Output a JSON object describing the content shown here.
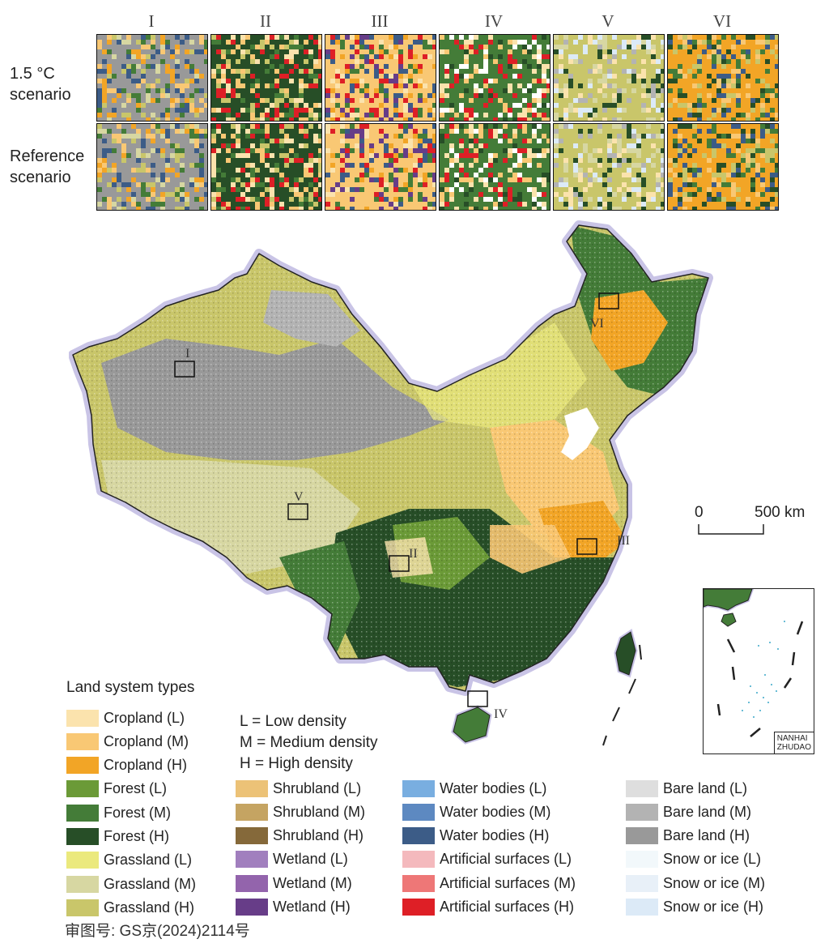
{
  "columns": [
    "I",
    "II",
    "III",
    "IV",
    "V",
    "VI"
  ],
  "rows": [
    {
      "label_line1": "1.5 °C",
      "label_line2": "scenario"
    },
    {
      "label_line1": "Reference",
      "label_line2": "scenario"
    }
  ],
  "regions": [
    "I",
    "II",
    "III",
    "IV",
    "V",
    "VI"
  ],
  "scale_bar": {
    "zero": "0",
    "end": "500 km"
  },
  "inset": {
    "label_line1": "NANHAI",
    "label_line2": "ZHUDAO"
  },
  "legend": {
    "title": "Land system types",
    "density_notes": [
      "L = Low density",
      "M = Medium density",
      "H = High density"
    ],
    "items": [
      {
        "label": "Cropland (L)",
        "color": "#fbe3ad"
      },
      {
        "label": "Cropland (M)",
        "color": "#f9c874"
      },
      {
        "label": "Cropland (H)",
        "color": "#f2a526"
      },
      {
        "label": "Forest (L)",
        "color": "#6b9a37"
      },
      {
        "label": "Forest (M)",
        "color": "#447c38"
      },
      {
        "label": "Forest (H)",
        "color": "#274e27"
      },
      {
        "label": "Grassland (L)",
        "color": "#ebe97d"
      },
      {
        "label": "Grassland (M)",
        "color": "#d7d7a2"
      },
      {
        "label": "Grassland (H)",
        "color": "#c9c66a"
      },
      {
        "label": "Shrubland (L)",
        "color": "#ecc277"
      },
      {
        "label": "Shrubland (M)",
        "color": "#c5a462"
      },
      {
        "label": "Shrubland (H)",
        "color": "#85693a"
      },
      {
        "label": "Wetland (L)",
        "color": "#a17fbe"
      },
      {
        "label": "Wetland (M)",
        "color": "#9364ac"
      },
      {
        "label": "Wetland (H)",
        "color": "#673d88"
      },
      {
        "label": "Water bodies (L)",
        "color": "#79aee0"
      },
      {
        "label": "Water bodies (M)",
        "color": "#5d89c1"
      },
      {
        "label": "Water bodies (H)",
        "color": "#3c5c87"
      },
      {
        "label": "Artificial surfaces (L)",
        "color": "#f4b9bd"
      },
      {
        "label": "Artificial surfaces (M)",
        "color": "#ee7777"
      },
      {
        "label": "Artificial surfaces (H)",
        "color": "#de1f26"
      },
      {
        "label": "Bare land (L)",
        "color": "#dedede"
      },
      {
        "label": "Bare land (M)",
        "color": "#b3b3b3"
      },
      {
        "label": "Bare land (H)",
        "color": "#999999"
      },
      {
        "label": "Snow or ice (L)",
        "color": "#f2f8fb"
      },
      {
        "label": "Snow or ice (M)",
        "color": "#e8f0f8"
      },
      {
        "label": "Snow or ice (H)",
        "color": "#dceaf7"
      }
    ]
  },
  "approval_number": "审图号: GS京(2024)2114号"
}
